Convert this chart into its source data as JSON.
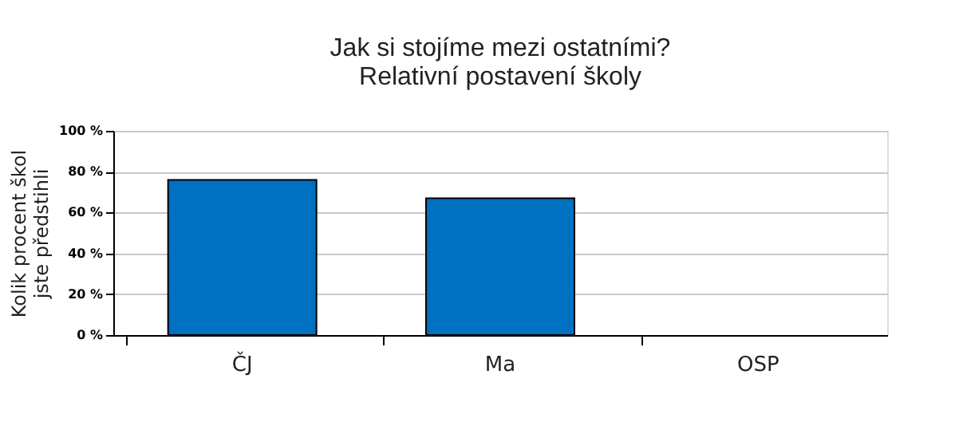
{
  "chart_data": {
    "type": "bar",
    "title": [
      "Jak si stojíme mezi ostatními?",
      "Relativní postavení školy"
    ],
    "ylabel": [
      "Kolik procent škol",
      "jste předstihli"
    ],
    "categories": [
      "ČJ",
      "Ma",
      "OSP"
    ],
    "values": [
      76,
      67,
      null
    ],
    "color": "#0070c0",
    "ylim": [
      0,
      100
    ],
    "yticks": [
      {
        "value": 0,
        "label": "0 %"
      },
      {
        "value": 20,
        "label": "20 %"
      },
      {
        "value": 40,
        "label": "40 %"
      },
      {
        "value": 60,
        "label": "60 %"
      },
      {
        "value": 80,
        "label": "80 %"
      },
      {
        "value": 100,
        "label": "100 %"
      }
    ],
    "grid": "y"
  }
}
